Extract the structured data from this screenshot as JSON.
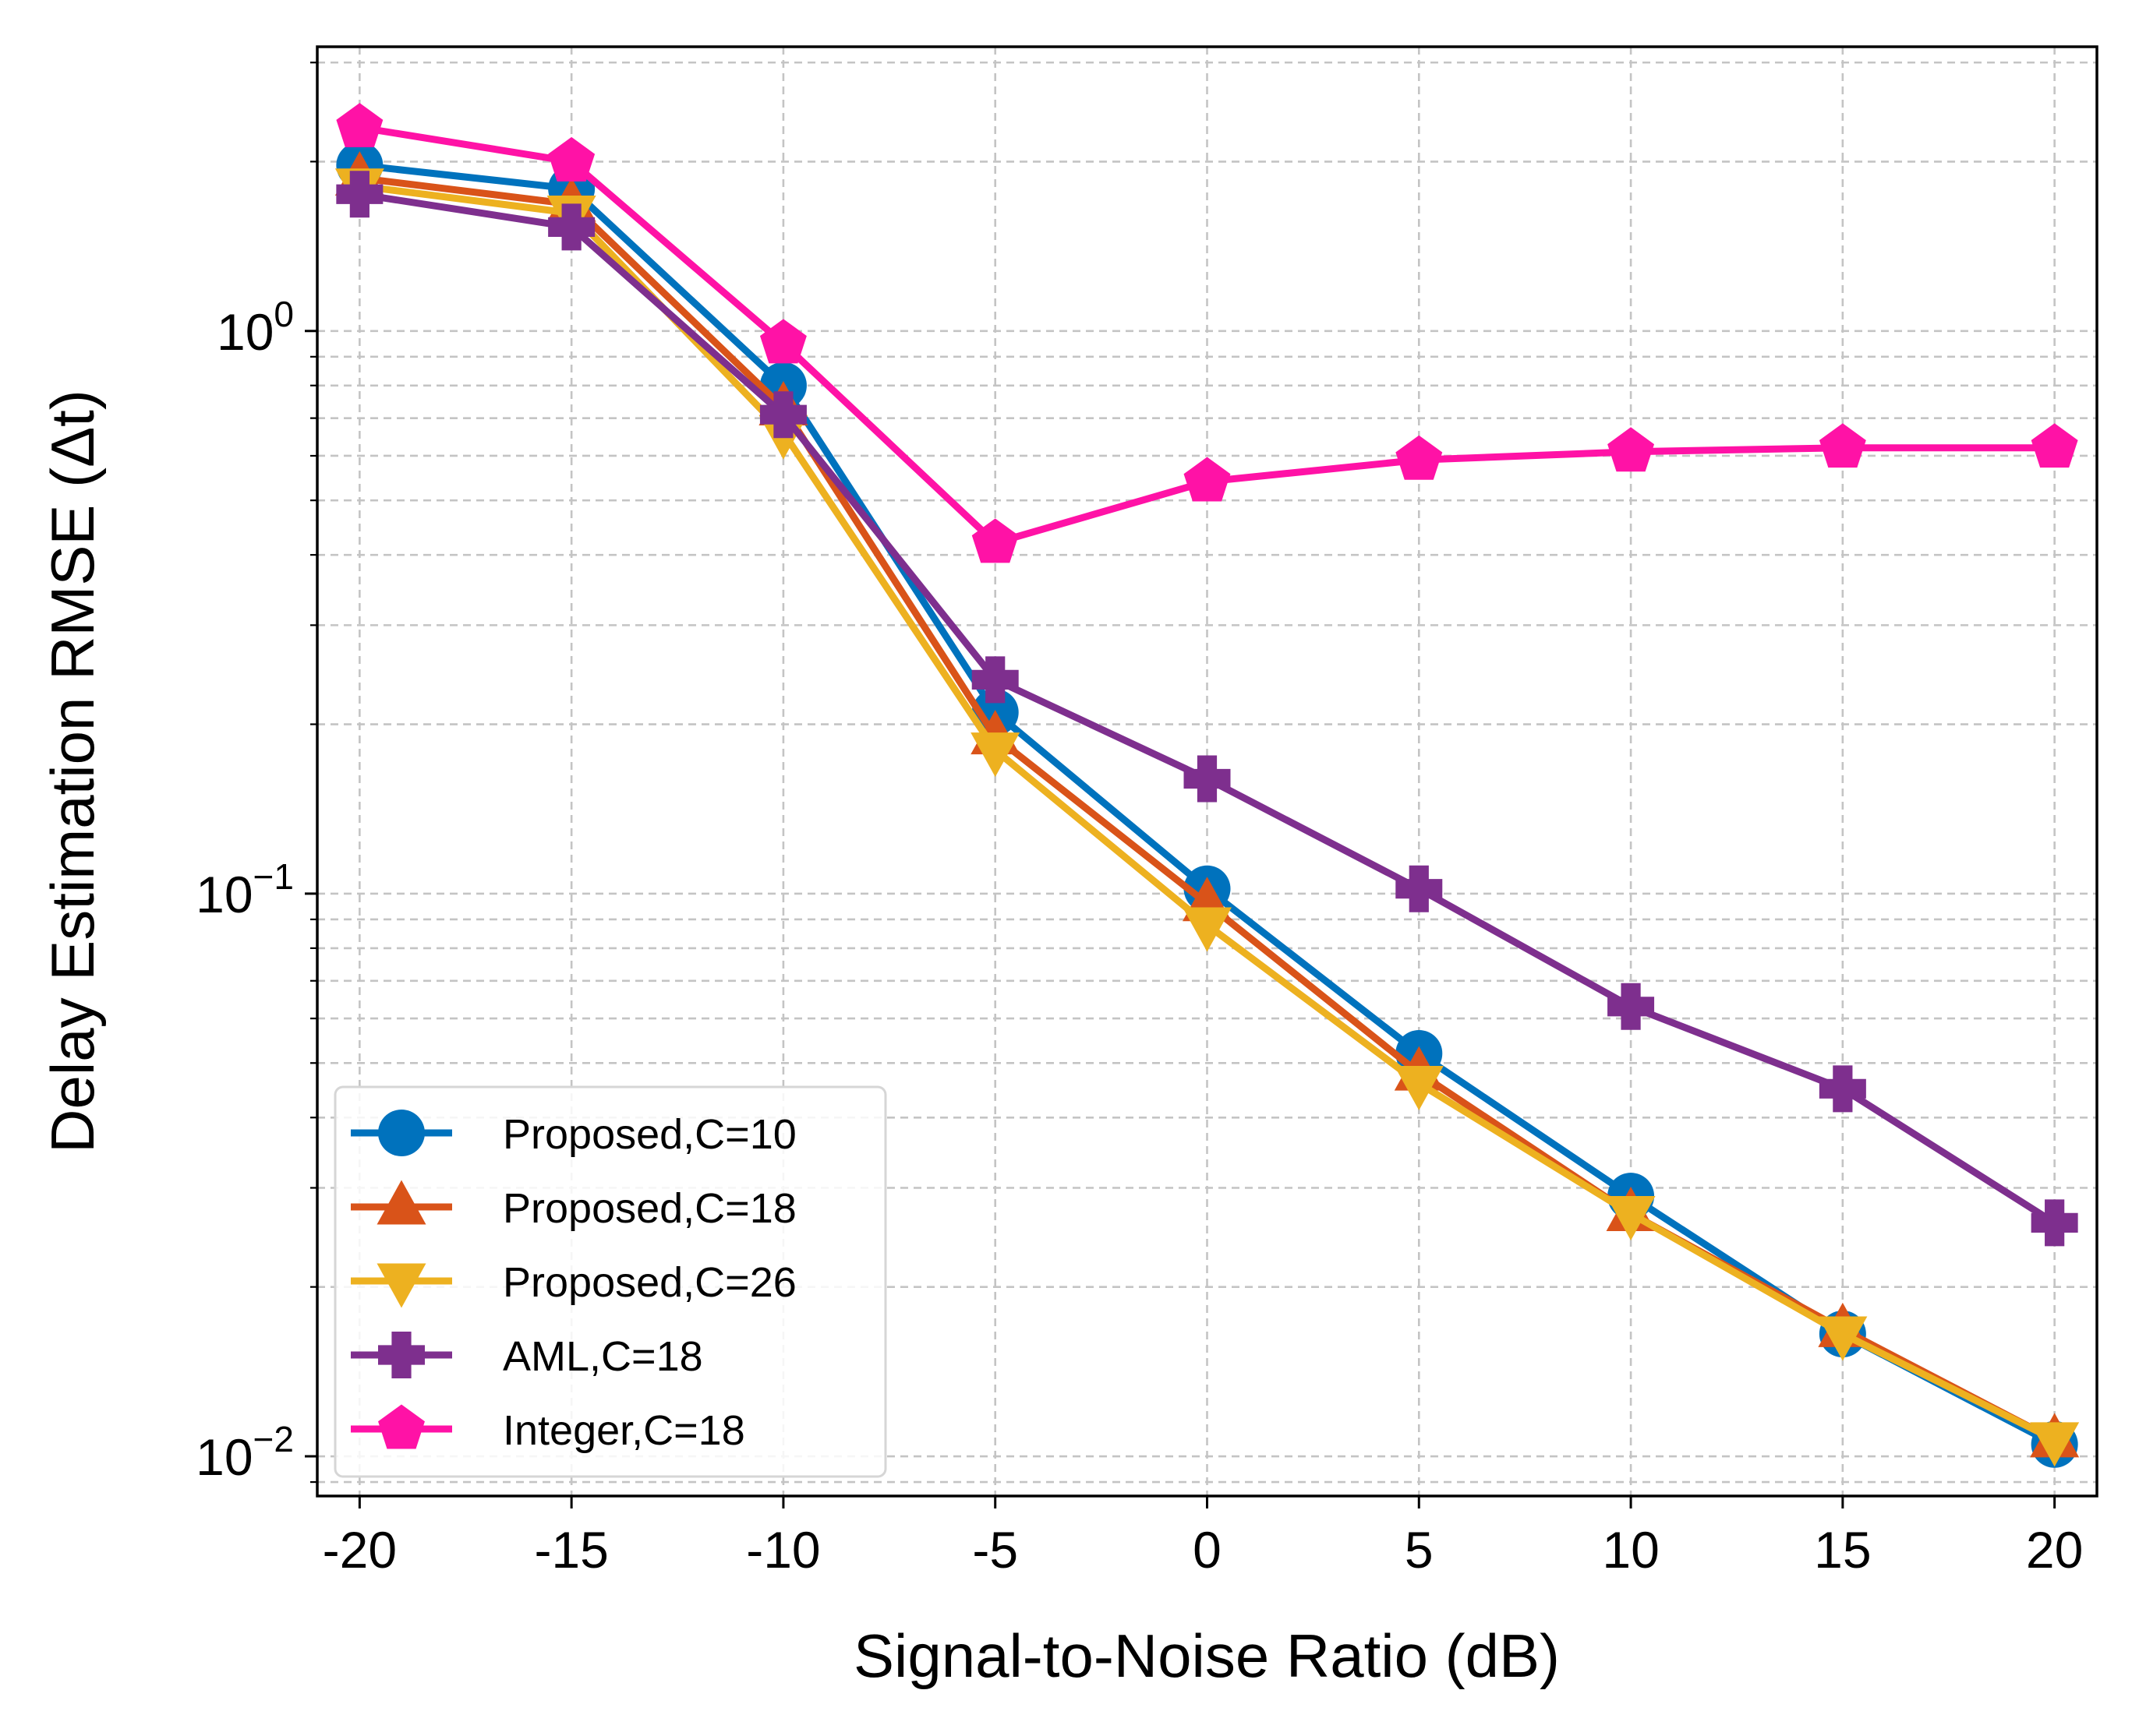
{
  "chart_data": {
    "type": "line",
    "xlabel": "Signal-to-Noise Ratio (dB)",
    "ylabel": "Delay Estimation RMSE (Δt)",
    "x": [
      -20,
      -15,
      -10,
      -5,
      0,
      5,
      10,
      15,
      20
    ],
    "x_tick_labels": [
      "-20",
      "-15",
      "-10",
      "-5",
      "0",
      "5",
      "10",
      "15",
      "20"
    ],
    "xlim": [
      -21,
      21
    ],
    "ylim": [
      0.0085,
      3.2
    ],
    "yscale": "log",
    "y_ticks": [
      {
        "value": 1,
        "base": "10",
        "exp": "0"
      },
      {
        "value": 0.1,
        "base": "10",
        "exp": "−1"
      },
      {
        "value": 0.01,
        "base": "10",
        "exp": "−2"
      }
    ],
    "grid": true,
    "legend_position": "lower-left",
    "series": [
      {
        "name": "Proposed,C=10",
        "color": "#0072BD",
        "marker": "circle",
        "values": [
          1.97,
          1.79,
          0.8,
          0.21,
          0.102,
          0.052,
          0.029,
          0.0165,
          0.0105
        ]
      },
      {
        "name": "Proposed,C=18",
        "color": "#D95319",
        "marker": "triangle-up",
        "values": [
          1.87,
          1.68,
          0.73,
          0.19,
          0.096,
          0.048,
          0.027,
          0.0168,
          0.0107
        ]
      },
      {
        "name": "Proposed,C=26",
        "color": "#EDB120",
        "marker": "triangle-down",
        "values": [
          1.81,
          1.62,
          0.66,
          0.18,
          0.088,
          0.046,
          0.027,
          0.0165,
          0.0107
        ]
      },
      {
        "name": "AML,C=18",
        "color": "#7E2F8E",
        "marker": "plus",
        "values": [
          1.75,
          1.53,
          0.71,
          0.24,
          0.16,
          0.102,
          0.063,
          0.045,
          0.026
        ]
      },
      {
        "name": "Integer,C=18",
        "color": "#FF12A6",
        "marker": "pentagon",
        "values": [
          2.3,
          2.0,
          0.95,
          0.42,
          0.54,
          0.59,
          0.61,
          0.62,
          0.62
        ]
      }
    ]
  }
}
